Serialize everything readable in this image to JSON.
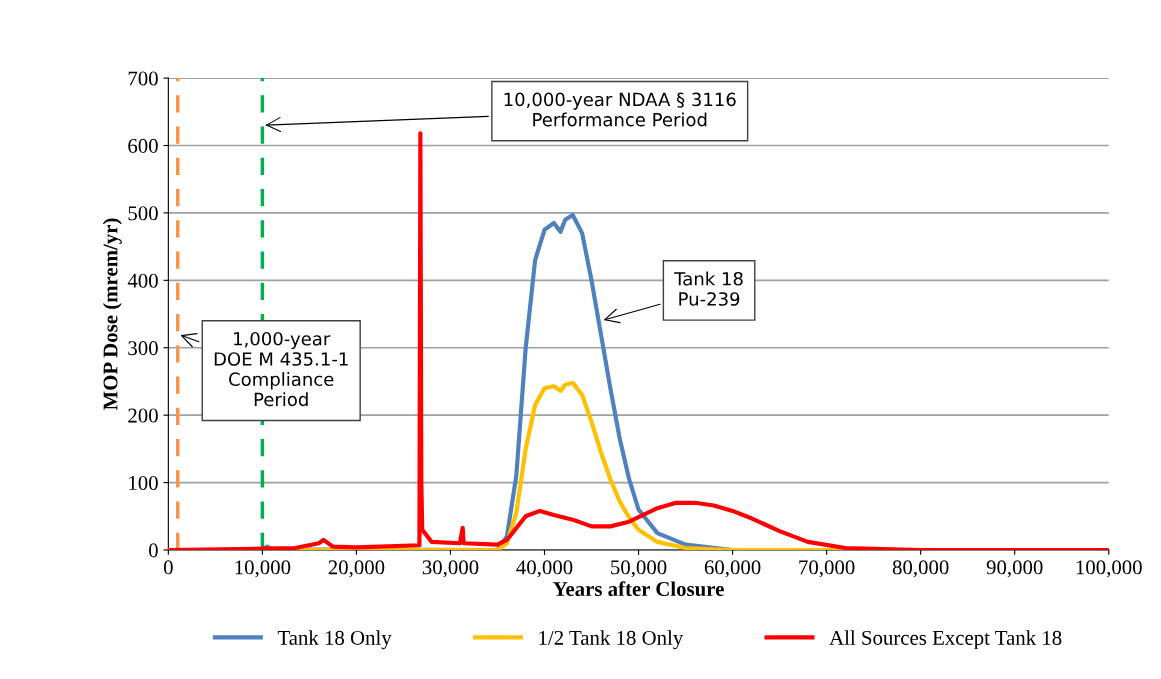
{
  "chart_data": {
    "type": "line",
    "xlabel": "Years after Closure",
    "ylabel": "MOP Dose (mrem/yr)",
    "xlim": [
      0,
      100000
    ],
    "xticks": [
      {
        "value": 0,
        "label": "0"
      },
      {
        "value": 10000,
        "label": "10,000"
      },
      {
        "value": 20000,
        "label": "20,000"
      },
      {
        "value": 30000,
        "label": "30,000"
      },
      {
        "value": 40000,
        "label": "40,000"
      },
      {
        "value": 50000,
        "label": "50,000"
      },
      {
        "value": 60000,
        "label": "60,000"
      },
      {
        "value": 70000,
        "label": "70,000"
      },
      {
        "value": 80000,
        "label": "80,000"
      },
      {
        "value": 90000,
        "label": "90,000"
      },
      {
        "value": 100000,
        "label": "100,000"
      }
    ],
    "ylim": [
      0,
      700
    ],
    "yticks": [
      0,
      100,
      200,
      300,
      400,
      500,
      600,
      700
    ],
    "grid": "y",
    "legend": "bottom",
    "marker": "none",
    "line_style": "solid",
    "series": [
      {
        "name": "Tank 18 Only",
        "color": "#4f81bd",
        "x": [
          0,
          10000,
          10500,
          11000,
          35000,
          36000,
          37000,
          38000,
          39000,
          40000,
          41000,
          41700,
          42200,
          43000,
          44000,
          45000,
          46000,
          47000,
          48000,
          49000,
          50000,
          52000,
          55000,
          60000
        ],
        "values": [
          0,
          0,
          5,
          1,
          0,
          20,
          110,
          300,
          430,
          475,
          485,
          472,
          490,
          497,
          470,
          400,
          320,
          240,
          165,
          105,
          60,
          25,
          8,
          0
        ]
      },
      {
        "name": "1/2 Tank 18 Only",
        "color": "#ffc000",
        "x": [
          0,
          35000,
          36000,
          37000,
          38000,
          39000,
          40000,
          41000,
          41700,
          42200,
          43000,
          44000,
          45000,
          46000,
          47000,
          48000,
          49000,
          50000,
          52000,
          55000,
          60000,
          100000
        ],
        "values": [
          0,
          0,
          10,
          55,
          150,
          215,
          240,
          243,
          236,
          245,
          248,
          230,
          190,
          145,
          105,
          72,
          48,
          30,
          12,
          3,
          0,
          0
        ]
      },
      {
        "name": "All Sources Except Tank 18",
        "color": "#ff0000",
        "x": [
          0,
          10000,
          13500,
          16000,
          16500,
          17500,
          20000,
          26700,
          26800,
          26900,
          27000,
          28000,
          31000,
          31300,
          31400,
          35000,
          36000,
          38000,
          39500,
          41000,
          43000,
          45000,
          47000,
          49000,
          52000,
          54000,
          56000,
          58000,
          60000,
          62000,
          65000,
          68000,
          72000,
          80000,
          100000
        ],
        "values": [
          0,
          2,
          3,
          10,
          15,
          5,
          4,
          7,
          618,
          100,
          30,
          12,
          10,
          33,
          10,
          8,
          15,
          50,
          58,
          52,
          45,
          35,
          35,
          42,
          62,
          70,
          70,
          66,
          58,
          47,
          28,
          12,
          3,
          0,
          0
        ]
      }
    ],
    "ref_lines": [
      {
        "axis": "x",
        "value": 1000,
        "color": "#f79646",
        "line_style": "dashed"
      },
      {
        "axis": "x",
        "value": 10000,
        "color": "#00b050",
        "line_style": "dashed"
      }
    ],
    "annotations": [
      {
        "text": "10,000-year NDAA § 3116\nPerformance Period",
        "x": 10000,
        "y": 630
      },
      {
        "text": "1,000-year\nDOE M 435.1-1\nCompliance\nPeriod",
        "x": 1000,
        "y": 320
      },
      {
        "text": "Tank 18\nPu-239",
        "x": 46000,
        "y": 340
      }
    ]
  }
}
